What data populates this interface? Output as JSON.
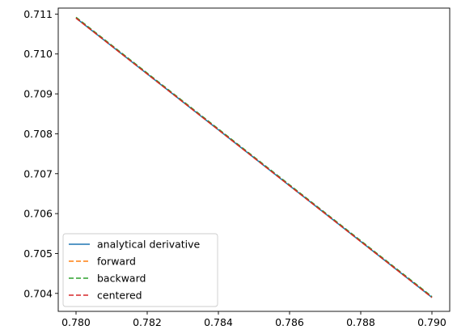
{
  "chart_data": {
    "type": "line",
    "title": "",
    "xlabel": "",
    "ylabel": "",
    "xlim": [
      0.7795,
      0.7905
    ],
    "ylim": [
      0.70355,
      0.71115
    ],
    "x_ticks": [
      0.78,
      0.782,
      0.784,
      0.786,
      0.788,
      0.79
    ],
    "x_tick_labels": [
      "0.780",
      "0.782",
      "0.784",
      "0.786",
      "0.788",
      "0.790"
    ],
    "y_ticks": [
      0.704,
      0.705,
      0.706,
      0.707,
      0.708,
      0.709,
      0.71,
      0.711
    ],
    "y_tick_labels": [
      "0.704",
      "0.705",
      "0.706",
      "0.707",
      "0.708",
      "0.709",
      "0.710",
      "0.711"
    ],
    "grid": false,
    "legend_position": "lower-left",
    "series": [
      {
        "name": "analytical derivative",
        "color": "#1f77b4",
        "dash": "solid",
        "x": [
          0.78,
          0.782,
          0.784,
          0.786,
          0.788,
          0.79
        ],
        "y": [
          0.7109,
          0.7095,
          0.7081,
          0.7067,
          0.7053,
          0.7039
        ]
      },
      {
        "name": "forward",
        "color": "#ff7f0e",
        "dash": "dashed",
        "x": [
          0.78,
          0.782,
          0.784,
          0.786,
          0.788,
          0.79
        ],
        "y": [
          0.7109,
          0.7095,
          0.7081,
          0.7067,
          0.7053,
          0.7039
        ]
      },
      {
        "name": "backward",
        "color": "#2ca02c",
        "dash": "dashed",
        "x": [
          0.78,
          0.782,
          0.784,
          0.786,
          0.788,
          0.79
        ],
        "y": [
          0.71092,
          0.70952,
          0.70812,
          0.70672,
          0.70532,
          0.70392
        ]
      },
      {
        "name": "centered",
        "color": "#d62728",
        "dash": "dashed",
        "x": [
          0.78,
          0.782,
          0.784,
          0.786,
          0.788,
          0.79
        ],
        "y": [
          0.7109,
          0.7095,
          0.7081,
          0.7067,
          0.7053,
          0.7039
        ]
      }
    ]
  }
}
